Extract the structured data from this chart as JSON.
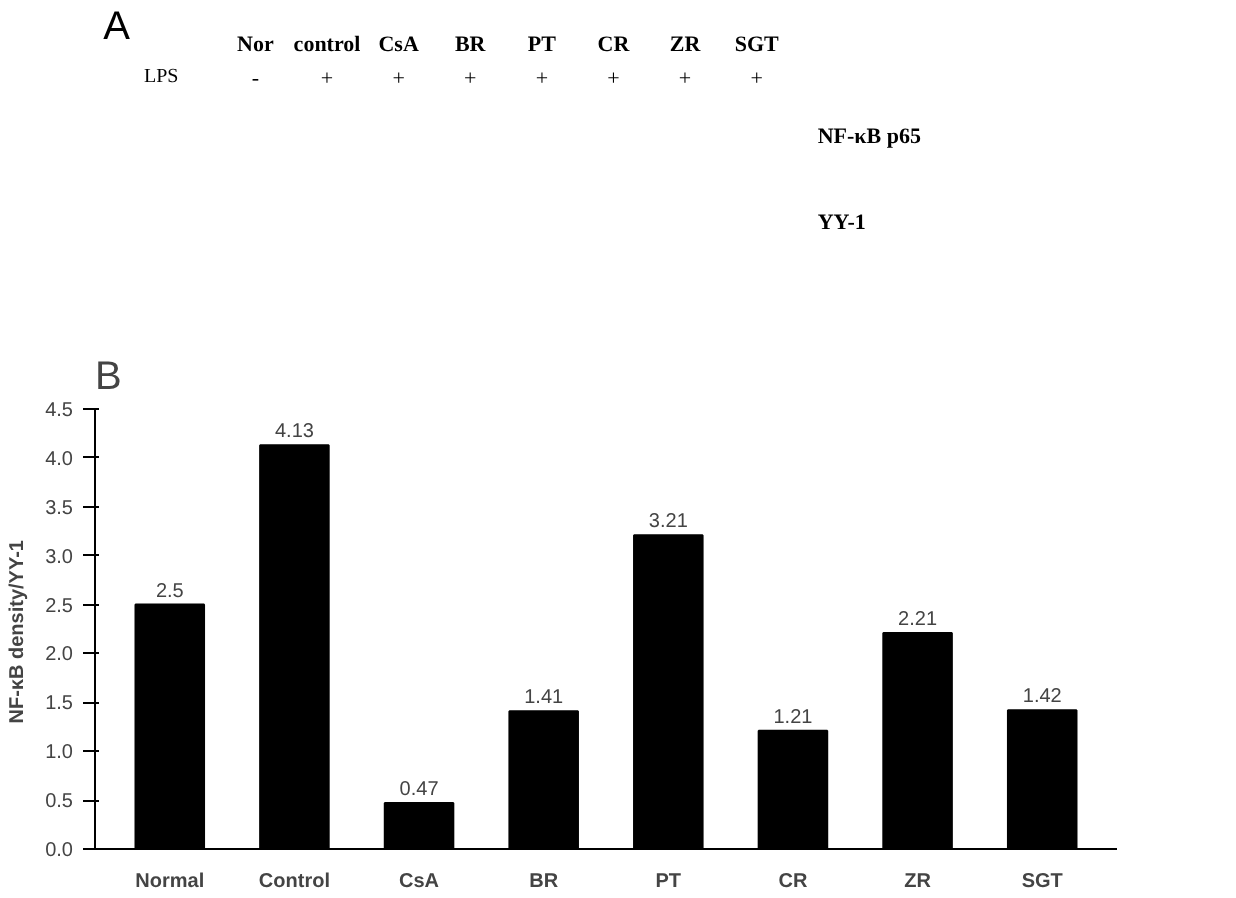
{
  "chart_data": [
    {
      "type": "other",
      "title": "A",
      "categories": [
        "Nor",
        "control",
        "CsA",
        "BR",
        "PT",
        "CR",
        "ZR",
        "SGT"
      ],
      "annotations": [
        "LPS",
        "-",
        "+",
        "+",
        "+",
        "+",
        "+",
        "+",
        "+",
        "NF-κB p65",
        "YY-1"
      ]
    },
    {
      "type": "bar",
      "title": "B",
      "categories": [
        "Normal",
        "Control",
        "CsA",
        "BR",
        "PT",
        "CR",
        "ZR",
        "SGT"
      ],
      "values": [
        2.5,
        4.13,
        0.47,
        1.41,
        3.21,
        1.21,
        2.21,
        1.42
      ],
      "color": "#000000",
      "data_labels": true,
      "ylabel": "NF-κB  density/YY-1",
      "ylim": [
        0,
        4.5
      ],
      "yticks": [
        {
          "value": 0,
          "label": "0.0"
        },
        {
          "value": 0.5,
          "label": "0.5"
        },
        {
          "value": 1,
          "label": "1.0"
        },
        {
          "value": 1.5,
          "label": "1.5"
        },
        {
          "value": 2,
          "label": "2.0"
        },
        {
          "value": 2.5,
          "label": "2.5"
        },
        {
          "value": 3,
          "label": "3.0"
        },
        {
          "value": 3.5,
          "label": "3.5"
        },
        {
          "value": 4,
          "label": "4.0"
        },
        {
          "value": 4.5,
          "label": "4.5"
        }
      ],
      "grid": false
    }
  ]
}
